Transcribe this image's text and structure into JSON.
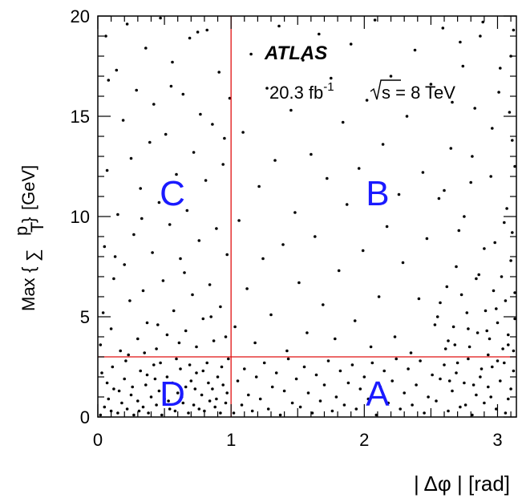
{
  "chart_data": {
    "type": "scatter",
    "title": "",
    "xlabel": "| Δφ | [rad]",
    "ylabel": {
      "prefix": "Max",
      "sum_symbol": "∑",
      "var": "p",
      "subscript": "T",
      "unit": "[GeV]"
    },
    "xlim": [
      0,
      3.14159
    ],
    "ylim": [
      0,
      20
    ],
    "x_ticks": [
      0,
      1,
      2,
      3
    ],
    "x_tick_labels": [
      "0",
      "1",
      "2",
      "3"
    ],
    "y_ticks": [
      0,
      5,
      10,
      15,
      20
    ],
    "y_tick_labels": [
      "0",
      "5",
      "10",
      "15",
      "20"
    ],
    "cut_lines": {
      "x": 1.0,
      "y": 3.0,
      "color": "#e01010"
    },
    "experiment": "ATLAS",
    "luminosity": {
      "value": "20.3 fb",
      "exponent": "-1",
      "energy": "s = 8 TeV"
    },
    "regions": [
      {
        "label": "A",
        "x": 2.1,
        "y": 1.2
      },
      {
        "label": "B",
        "x": 2.1,
        "y": 11.2
      },
      {
        "label": "C",
        "x": 0.56,
        "y": 11.2
      },
      {
        "label": "D",
        "x": 0.56,
        "y": 1.2
      }
    ],
    "region_color": "#1a1aff",
    "point_color": "#000000",
    "points": [
      [
        0.02,
        0.1
      ],
      [
        0.05,
        0.5
      ],
      [
        0.08,
        0.9
      ],
      [
        0.1,
        0.3
      ],
      [
        0.12,
        1.4
      ],
      [
        0.15,
        0.2
      ],
      [
        0.18,
        0.7
      ],
      [
        0.2,
        1.9
      ],
      [
        0.22,
        0.4
      ],
      [
        0.25,
        1.1
      ],
      [
        0.27,
        0.1
      ],
      [
        0.3,
        0.8
      ],
      [
        0.32,
        2.3
      ],
      [
        0.34,
        0.5
      ],
      [
        0.36,
        1.6
      ],
      [
        0.38,
        0.2
      ],
      [
        0.4,
        1.0
      ],
      [
        0.42,
        2.6
      ],
      [
        0.44,
        0.6
      ],
      [
        0.46,
        1.3
      ],
      [
        0.48,
        0.1
      ],
      [
        0.5,
        0.9
      ],
      [
        0.52,
        2.0
      ],
      [
        0.54,
        0.4
      ],
      [
        0.56,
        1.7
      ],
      [
        0.58,
        0.3
      ],
      [
        0.6,
        1.2
      ],
      [
        0.62,
        2.4
      ],
      [
        0.64,
        0.7
      ],
      [
        0.66,
        1.5
      ],
      [
        0.68,
        0.2
      ],
      [
        0.7,
        1.8
      ],
      [
        0.72,
        0.6
      ],
      [
        0.74,
        2.2
      ],
      [
        0.76,
        0.4
      ],
      [
        0.78,
        1.1
      ],
      [
        0.8,
        0.3
      ],
      [
        0.82,
        2.7
      ],
      [
        0.84,
        0.8
      ],
      [
        0.86,
        1.4
      ],
      [
        0.88,
        0.5
      ],
      [
        0.9,
        2.0
      ],
      [
        0.92,
        0.2
      ],
      [
        0.94,
        1.6
      ],
      [
        0.96,
        0.7
      ],
      [
        0.98,
        2.9
      ],
      [
        0.03,
        2.2
      ],
      [
        0.07,
        1.7
      ],
      [
        0.11,
        2.5
      ],
      [
        0.16,
        1.3
      ],
      [
        0.21,
        2.8
      ],
      [
        0.26,
        1.5
      ],
      [
        0.31,
        0.3
      ],
      [
        0.37,
        2.1
      ],
      [
        0.43,
        1.9
      ],
      [
        0.47,
        2.7
      ],
      [
        0.53,
        0.8
      ],
      [
        0.59,
        2.9
      ],
      [
        0.63,
        1.0
      ],
      [
        0.69,
        2.6
      ],
      [
        0.73,
        1.4
      ],
      [
        0.79,
        2.3
      ],
      [
        0.83,
        1.7
      ],
      [
        0.89,
        0.9
      ],
      [
        0.93,
        2.5
      ],
      [
        0.97,
        1.2
      ],
      [
        0.02,
        3.6
      ],
      [
        0.04,
        5.2
      ],
      [
        0.05,
        8.5
      ],
      [
        0.07,
        12.3
      ],
      [
        0.08,
        16.8
      ],
      [
        0.1,
        4.4
      ],
      [
        0.12,
        6.9
      ],
      [
        0.14,
        17.3
      ],
      [
        0.15,
        10.1
      ],
      [
        0.17,
        3.3
      ],
      [
        0.19,
        14.8
      ],
      [
        0.2,
        7.6
      ],
      [
        0.22,
        19.6
      ],
      [
        0.24,
        5.8
      ],
      [
        0.25,
        12.9
      ],
      [
        0.27,
        9.1
      ],
      [
        0.29,
        16.3
      ],
      [
        0.3,
        3.9
      ],
      [
        0.32,
        11.4
      ],
      [
        0.34,
        6.3
      ],
      [
        0.36,
        18.4
      ],
      [
        0.37,
        4.7
      ],
      [
        0.39,
        13.7
      ],
      [
        0.41,
        8.2
      ],
      [
        0.42,
        15.6
      ],
      [
        0.44,
        3.4
      ],
      [
        0.46,
        10.7
      ],
      [
        0.47,
        19.9
      ],
      [
        0.49,
        6.8
      ],
      [
        0.51,
        14.1
      ],
      [
        0.52,
        4.1
      ],
      [
        0.54,
        9.6
      ],
      [
        0.56,
        17.7
      ],
      [
        0.57,
        5.3
      ],
      [
        0.59,
        12.1
      ],
      [
        0.61,
        3.7
      ],
      [
        0.62,
        7.9
      ],
      [
        0.64,
        16.1
      ],
      [
        0.66,
        4.3
      ],
      [
        0.67,
        10.3
      ],
      [
        0.69,
        18.9
      ],
      [
        0.71,
        6.1
      ],
      [
        0.72,
        13.2
      ],
      [
        0.74,
        3.5
      ],
      [
        0.76,
        8.8
      ],
      [
        0.77,
        15.1
      ],
      [
        0.79,
        4.9
      ],
      [
        0.81,
        11.8
      ],
      [
        0.82,
        19.3
      ],
      [
        0.84,
        6.6
      ],
      [
        0.86,
        14.6
      ],
      [
        0.87,
        3.8
      ],
      [
        0.89,
        9.4
      ],
      [
        0.91,
        17.2
      ],
      [
        0.92,
        5.5
      ],
      [
        0.94,
        12.6
      ],
      [
        0.96,
        4.0
      ],
      [
        0.97,
        8.1
      ],
      [
        0.99,
        15.9
      ],
      [
        0.06,
        19.0
      ],
      [
        0.13,
        8.0
      ],
      [
        0.23,
        3.1
      ],
      [
        0.33,
        9.9
      ],
      [
        0.45,
        4.6
      ],
      [
        0.55,
        16.5
      ],
      [
        0.65,
        7.2
      ],
      [
        0.75,
        19.2
      ],
      [
        0.85,
        5.0
      ],
      [
        0.95,
        13.9
      ],
      [
        0.35,
        3.2
      ],
      [
        1.02,
        0.2
      ],
      [
        1.05,
        1.8
      ],
      [
        1.08,
        0.6
      ],
      [
        1.1,
        2.4
      ],
      [
        1.13,
        1.1
      ],
      [
        1.16,
        0.3
      ],
      [
        1.19,
        2.0
      ],
      [
        1.22,
        0.9
      ],
      [
        1.25,
        2.7
      ],
      [
        1.28,
        0.4
      ],
      [
        1.31,
        1.5
      ],
      [
        1.34,
        2.2
      ],
      [
        1.37,
        0.1
      ],
      [
        1.4,
        1.3
      ],
      [
        1.43,
        2.9
      ],
      [
        1.46,
        0.7
      ],
      [
        1.49,
        1.9
      ],
      [
        1.52,
        0.5
      ],
      [
        1.55,
        2.5
      ],
      [
        1.58,
        1.2
      ],
      [
        1.61,
        0.2
      ],
      [
        1.64,
        2.1
      ],
      [
        1.67,
        0.8
      ],
      [
        1.7,
        1.6
      ],
      [
        1.73,
        2.8
      ],
      [
        1.76,
        0.3
      ],
      [
        1.79,
        1.0
      ],
      [
        1.82,
        2.3
      ],
      [
        1.85,
        0.6
      ],
      [
        1.88,
        1.7
      ],
      [
        1.91,
        2.6
      ],
      [
        1.94,
        0.4
      ],
      [
        1.97,
        1.4
      ],
      [
        2.0,
        2.0
      ],
      [
        2.03,
        0.9
      ],
      [
        2.06,
        2.7
      ],
      [
        2.09,
        0.1
      ],
      [
        2.12,
        1.5
      ],
      [
        2.15,
        2.3
      ],
      [
        2.18,
        0.7
      ],
      [
        2.21,
        1.8
      ],
      [
        2.24,
        2.9
      ],
      [
        2.27,
        0.4
      ],
      [
        2.3,
        1.2
      ],
      [
        2.33,
        2.4
      ],
      [
        2.36,
        0.6
      ],
      [
        2.39,
        1.6
      ],
      [
        2.42,
        2.8
      ],
      [
        2.45,
        0.2
      ],
      [
        2.48,
        1.0
      ],
      [
        2.51,
        2.1
      ],
      [
        2.54,
        0.8
      ],
      [
        2.57,
        1.9
      ],
      [
        2.6,
        2.6
      ],
      [
        2.63,
        0.3
      ],
      [
        2.66,
        1.3
      ],
      [
        2.69,
        2.2
      ],
      [
        2.72,
        0.5
      ],
      [
        2.75,
        1.7
      ],
      [
        2.78,
        2.9
      ],
      [
        2.81,
        0.1
      ],
      [
        2.84,
        1.1
      ],
      [
        2.87,
        2.0
      ],
      [
        2.9,
        0.7
      ],
      [
        2.93,
        1.5
      ],
      [
        2.96,
        2.5
      ],
      [
        2.99,
        0.4
      ],
      [
        3.02,
        1.8
      ],
      [
        3.05,
        2.7
      ],
      [
        3.08,
        0.9
      ],
      [
        3.1,
        1.4
      ],
      [
        3.12,
        2.3
      ],
      [
        3.06,
        0.2
      ],
      [
        3.0,
        2.8
      ],
      [
        2.95,
        1.0
      ],
      [
        2.88,
        2.4
      ],
      [
        2.82,
        1.6
      ],
      [
        2.76,
        0.6
      ],
      [
        2.7,
        2.7
      ],
      [
        2.64,
        1.8
      ],
      [
        1.03,
        4.5
      ],
      [
        1.06,
        9.8
      ],
      [
        1.09,
        14.2
      ],
      [
        1.12,
        6.4
      ],
      [
        1.15,
        18.1
      ],
      [
        1.18,
        3.7
      ],
      [
        1.21,
        11.5
      ],
      [
        1.24,
        7.9
      ],
      [
        1.27,
        16.4
      ],
      [
        1.3,
        5.1
      ],
      [
        1.33,
        12.8
      ],
      [
        1.36,
        19.5
      ],
      [
        1.39,
        8.6
      ],
      [
        1.42,
        3.3
      ],
      [
        1.45,
        15.3
      ],
      [
        1.48,
        10.2
      ],
      [
        1.51,
        6.7
      ],
      [
        1.54,
        17.8
      ],
      [
        1.57,
        4.2
      ],
      [
        1.6,
        13.1
      ],
      [
        1.63,
        9.0
      ],
      [
        1.66,
        19.1
      ],
      [
        1.69,
        5.6
      ],
      [
        1.72,
        11.9
      ],
      [
        1.75,
        16.9
      ],
      [
        1.78,
        3.9
      ],
      [
        1.81,
        7.3
      ],
      [
        1.84,
        14.7
      ],
      [
        1.87,
        10.6
      ],
      [
        1.9,
        18.6
      ],
      [
        1.93,
        4.8
      ],
      [
        1.96,
        12.4
      ],
      [
        1.99,
        8.3
      ],
      [
        2.02,
        15.8
      ],
      [
        2.05,
        3.5
      ],
      [
        2.08,
        19.8
      ],
      [
        2.11,
        6.0
      ],
      [
        2.14,
        13.6
      ],
      [
        2.17,
        9.5
      ],
      [
        2.2,
        17.0
      ],
      [
        2.23,
        4.0
      ],
      [
        2.26,
        11.1
      ],
      [
        2.29,
        7.7
      ],
      [
        2.32,
        15.0
      ],
      [
        2.35,
        3.2
      ],
      [
        2.38,
        18.3
      ],
      [
        2.41,
        5.9
      ],
      [
        2.44,
        12.2
      ],
      [
        2.47,
        8.9
      ],
      [
        2.5,
        16.6
      ],
      [
        2.53,
        4.6
      ],
      [
        2.56,
        10.9
      ],
      [
        2.59,
        19.4
      ],
      [
        2.62,
        6.5
      ],
      [
        2.65,
        13.4
      ],
      [
        2.68,
        3.6
      ],
      [
        2.71,
        9.3
      ],
      [
        2.74,
        17.5
      ],
      [
        2.77,
        5.2
      ],
      [
        2.8,
        11.7
      ],
      [
        2.83,
        15.4
      ],
      [
        2.86,
        7.1
      ],
      [
        2.89,
        19.7
      ],
      [
        2.92,
        4.3
      ],
      [
        2.95,
        12.0
      ],
      [
        2.98,
        8.7
      ],
      [
        3.01,
        16.2
      ],
      [
        3.04,
        3.4
      ],
      [
        3.07,
        10.4
      ],
      [
        3.1,
        18.0
      ],
      [
        3.13,
        6.2
      ],
      [
        3.11,
        13.8
      ],
      [
        3.08,
        4.1
      ],
      [
        3.05,
        9.7
      ],
      [
        3.02,
        17.4
      ],
      [
        2.99,
        5.4
      ],
      [
        2.96,
        14.4
      ],
      [
        2.93,
        3.1
      ],
      [
        2.9,
        8.4
      ],
      [
        2.87,
        19.0
      ],
      [
        2.84,
        6.9
      ],
      [
        2.81,
        13.0
      ],
      [
        2.78,
        4.4
      ],
      [
        2.75,
        10.0
      ],
      [
        2.72,
        18.7
      ],
      [
        2.69,
        7.5
      ],
      [
        2.66,
        15.7
      ],
      [
        2.63,
        3.8
      ],
      [
        2.6,
        11.3
      ],
      [
        2.57,
        5.7
      ],
      [
        3.12,
        3.3
      ],
      [
        3.13,
        4.9
      ],
      [
        3.1,
        7.8
      ],
      [
        3.11,
        9.2
      ],
      [
        3.13,
        12.5
      ],
      [
        3.09,
        15.2
      ],
      [
        3.12,
        19.3
      ],
      [
        3.08,
        3.6
      ],
      [
        3.06,
        5.8
      ],
      [
        3.03,
        7.0
      ],
      [
        3.0,
        4.7
      ],
      [
        2.97,
        6.3
      ],
      [
        2.94,
        3.9
      ],
      [
        2.91,
        5.3
      ],
      [
        2.85,
        4.2
      ],
      [
        2.79,
        3.5
      ],
      [
        2.73,
        6.1
      ],
      [
        2.67,
        4.5
      ],
      [
        2.61,
        3.4
      ],
      [
        2.55,
        5.0
      ]
    ]
  }
}
